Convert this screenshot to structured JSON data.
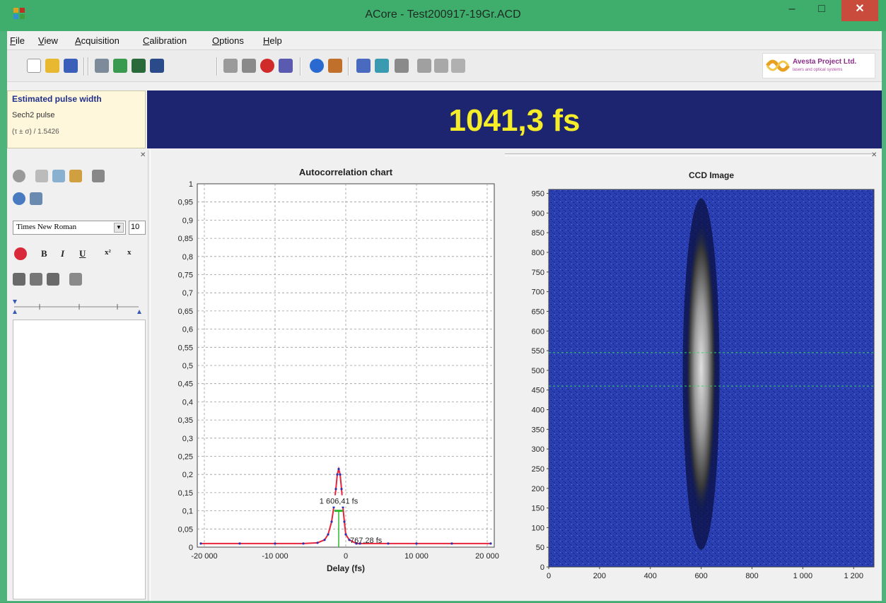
{
  "window": {
    "title": "ACore - Test200917-19Gr.ACD",
    "minimize": "–",
    "maximize": "□",
    "close": "✕"
  },
  "menu": [
    {
      "label": "File",
      "u": "F",
      "rest": "ile"
    },
    {
      "label": "View",
      "u": "V",
      "rest": "iew"
    },
    {
      "label": "Acquisition",
      "u": "A",
      "rest": "cquisition"
    },
    {
      "label": "Calibration",
      "u": "C",
      "rest": "alibration"
    },
    {
      "label": "Options",
      "u": "O",
      "rest": "ptions"
    },
    {
      "label": "Help",
      "u": "H",
      "rest": "elp"
    }
  ],
  "logo": {
    "line1": "Avesta Project Ltd.",
    "line2": "lasers and optical systems"
  },
  "pulse": {
    "title": "Estimated pulse width",
    "type": "Sech2 pulse",
    "formula": "(τ ± σ) / 1.5426",
    "value": "1041,3 fs"
  },
  "editor": {
    "font_name": "Times New Roman",
    "font_size": "10",
    "bold": "B",
    "italic": "I",
    "underline": "U",
    "superscript": "x²",
    "subscript": "x"
  },
  "colors": {
    "accent_title": "#3fae6c",
    "value_bg": "#1d2470",
    "value_text": "#f5ec2a",
    "chart_line": "#e8243a",
    "chart_points": "#2b2fb0",
    "ccd_bg": "#2a3fb2"
  },
  "chart_data": [
    {
      "type": "line",
      "title": "Autocorrelation chart",
      "xlabel": "Delay (fs)",
      "ylabel": "",
      "xlim": [
        -21000,
        21000
      ],
      "ylim": [
        0,
        1
      ],
      "grid": true,
      "x_ticks": [
        -20000,
        -10000,
        0,
        10000,
        20000
      ],
      "x_tick_labels": [
        "-20 000",
        "-10 000",
        "0",
        "10 000",
        "20 000"
      ],
      "y_ticks": [
        0,
        0.05,
        0.1,
        0.15,
        0.2,
        0.25,
        0.3,
        0.35,
        0.4,
        0.45,
        0.5,
        0.55,
        0.6,
        0.65,
        0.7,
        0.75,
        0.8,
        0.85,
        0.9,
        0.95,
        1
      ],
      "y_tick_labels": [
        "0",
        "0,05",
        "0,1",
        "0,15",
        "0,2",
        "0,25",
        "0,3",
        "0,35",
        "0,4",
        "0,45",
        "0,5",
        "0,55",
        "0,6",
        "0,65",
        "0,7",
        "0,75",
        "0,8",
        "0,85",
        "0,9",
        "0,95",
        "1"
      ],
      "series": [
        {
          "x": [
            -20500,
            -15000,
            -10000,
            -6000,
            -4000,
            -3000,
            -2500,
            -2000,
            -1700,
            -1400,
            -1200,
            -1000,
            -800,
            -600,
            -400,
            -200,
            0,
            500,
            1500,
            2000,
            6000,
            10000,
            15000,
            20500
          ],
          "values": [
            0.01,
            0.01,
            0.01,
            0.01,
            0.012,
            0.02,
            0.035,
            0.07,
            0.11,
            0.16,
            0.2,
            0.215,
            0.2,
            0.16,
            0.11,
            0.07,
            0.035,
            0.02,
            0.01,
            0.01,
            0.01,
            0.01,
            0.01,
            0.01
          ]
        }
      ],
      "annotations": [
        "1 606,41 fs",
        "767,28 fs"
      ]
    },
    {
      "type": "heatmap",
      "title": "CCD Image",
      "xlabel": "",
      "ylabel": "",
      "xlim": [
        0,
        1280
      ],
      "ylim": [
        0,
        960
      ],
      "x_tick_labels": [
        "0",
        "200",
        "400",
        "600",
        "800",
        "1 000",
        "1 200"
      ],
      "x_ticks": [
        0,
        200,
        400,
        600,
        800,
        1000,
        1200
      ],
      "y_ticks": [
        0,
        50,
        100,
        150,
        200,
        250,
        300,
        350,
        400,
        450,
        500,
        550,
        600,
        650,
        700,
        750,
        800,
        850,
        900,
        950
      ],
      "y_tick_labels": [
        "0",
        "50",
        "100",
        "150",
        "200",
        "250",
        "300",
        "350",
        "400",
        "450",
        "500",
        "550",
        "600",
        "650",
        "700",
        "750",
        "800",
        "850",
        "900",
        "950"
      ],
      "beam_center_x": 600,
      "beam_y_range": [
        130,
        880
      ],
      "roi_y_range": [
        460,
        545
      ]
    }
  ]
}
